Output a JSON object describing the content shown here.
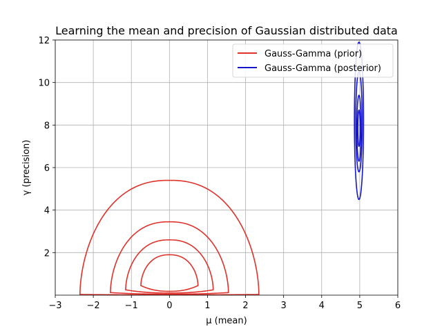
{
  "chart_data": {
    "type": "contour",
    "title": "Learning the mean and precision of Gaussian distributed data",
    "xlabel": "μ (mean)",
    "ylabel": "γ (precision)",
    "xlim": [
      -3,
      6
    ],
    "ylim": [
      0,
      12
    ],
    "xticks": [
      -3,
      -2,
      -1,
      0,
      1,
      2,
      3,
      4,
      5,
      6
    ],
    "yticks": [
      2,
      4,
      6,
      8,
      10,
      12
    ],
    "grid": true,
    "legend_position": "top-right",
    "series": [
      {
        "name": "Gauss-Gamma (prior)",
        "color": "#e0302a",
        "contours": [
          {
            "x_center": 0,
            "x_halfwidth": 0.75,
            "y_bottom": 0.45,
            "y_top": 1.9
          },
          {
            "x_center": 0,
            "x_halfwidth": 1.15,
            "y_bottom": 0.25,
            "y_top": 2.6
          },
          {
            "x_center": 0,
            "x_halfwidth": 1.55,
            "y_bottom": 0.12,
            "y_top": 3.45
          },
          {
            "x_center": 0,
            "x_halfwidth": 2.35,
            "y_bottom": 0.03,
            "y_top": 5.4
          }
        ]
      },
      {
        "name": "Gauss-Gamma (posterior)",
        "color": "#1515cc",
        "contours": [
          {
            "x_center": 4.98,
            "x_halfwidth": 0.03,
            "y_bottom": 7.0,
            "y_top": 8.7
          },
          {
            "x_center": 4.98,
            "x_halfwidth": 0.055,
            "y_bottom": 6.3,
            "y_top": 9.4
          },
          {
            "x_center": 4.98,
            "x_halfwidth": 0.085,
            "y_bottom": 5.8,
            "y_top": 10.5
          },
          {
            "x_center": 4.98,
            "x_halfwidth": 0.12,
            "y_bottom": 4.5,
            "y_top": 11.9
          }
        ]
      }
    ]
  }
}
